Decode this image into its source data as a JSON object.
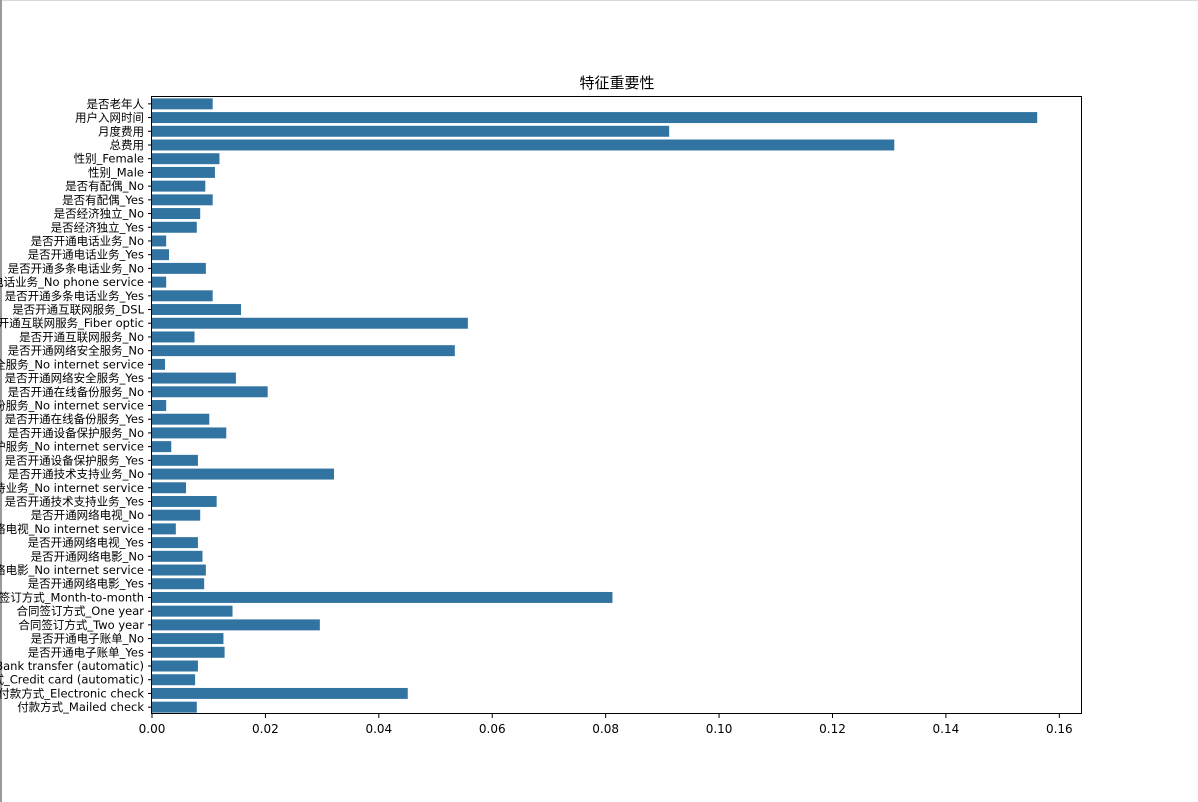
{
  "chart_data": {
    "type": "bar",
    "orientation": "horizontal",
    "title": "特征重要性",
    "xlabel": "",
    "ylabel": "",
    "xlim": [
      0,
      0.164
    ],
    "xticks": [
      0.0,
      0.02,
      0.04,
      0.06,
      0.08,
      0.1,
      0.12,
      0.14,
      0.16
    ],
    "xtick_labels": [
      "0.00",
      "0.02",
      "0.04",
      "0.06",
      "0.08",
      "0.10",
      "0.12",
      "0.14",
      "0.16"
    ],
    "bar_color": "#3274a1",
    "grid": false,
    "categories": [
      "是否老年人",
      "用户入网时间",
      "月度费用",
      "总费用",
      "性别_Female",
      "性别_Male",
      "是否有配偶_No",
      "是否有配偶_Yes",
      "是否经济独立_No",
      "是否经济独立_Yes",
      "是否开通电话业务_No",
      "是否开通电话业务_Yes",
      "是否开通多条电话业务_No",
      "是否开通多条电话业务_No phone service",
      "是否开通多条电话业务_Yes",
      "是否开通互联网服务_DSL",
      "是否开通互联网服务_Fiber optic",
      "是否开通互联网服务_No",
      "是否开通网络安全服务_No",
      "是否开通网络安全服务_No internet service",
      "是否开通网络安全服务_Yes",
      "是否开通在线备份服务_No",
      "是否开通在线备份服务_No internet service",
      "是否开通在线备份服务_Yes",
      "是否开通设备保护服务_No",
      "是否开通设备保护服务_No internet service",
      "是否开通设备保护服务_Yes",
      "是否开通技术支持业务_No",
      "是否开通技术支持业务_No internet service",
      "是否开通技术支持业务_Yes",
      "是否开通网络电视_No",
      "是否开通网络电视_No internet service",
      "是否开通网络电视_Yes",
      "是否开通网络电影_No",
      "是否开通网络电影_No internet service",
      "是否开通网络电影_Yes",
      "合同签订方式_Month-to-month",
      "合同签订方式_One year",
      "合同签订方式_Two year",
      "是否开通电子账单_No",
      "是否开通电子账单_Yes",
      "付款方式_Bank transfer (automatic)",
      "付款方式_Credit card (automatic)",
      "付款方式_Electronic check",
      "付款方式_Mailed check"
    ],
    "values": [
      0.0107,
      0.1561,
      0.0912,
      0.1309,
      0.0119,
      0.0111,
      0.0094,
      0.0107,
      0.0085,
      0.0079,
      0.0025,
      0.003,
      0.0095,
      0.0025,
      0.0107,
      0.0157,
      0.0557,
      0.0075,
      0.0534,
      0.0023,
      0.0148,
      0.0204,
      0.0025,
      0.0101,
      0.0131,
      0.0034,
      0.0081,
      0.0321,
      0.006,
      0.0114,
      0.0085,
      0.0042,
      0.0081,
      0.0089,
      0.0095,
      0.0092,
      0.0812,
      0.0142,
      0.0296,
      0.0126,
      0.0128,
      0.0081,
      0.0076,
      0.0451,
      0.0079
    ]
  }
}
